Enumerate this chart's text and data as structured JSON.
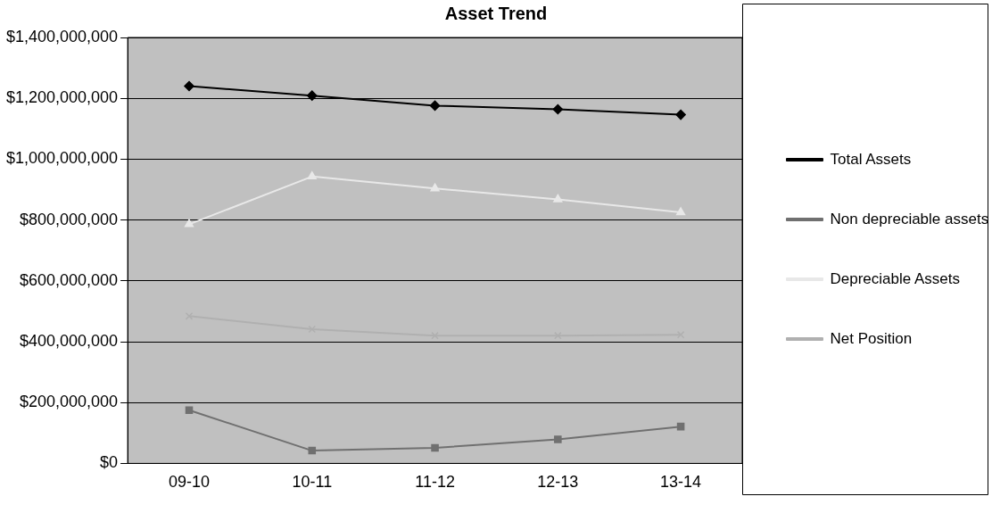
{
  "chart_data": {
    "type": "line",
    "title": "Asset Trend",
    "categories": [
      "09-10",
      "10-11",
      "11-12",
      "12-13",
      "13-14"
    ],
    "series": [
      {
        "name": "Total Assets",
        "color": "#000000",
        "marker": "diamond",
        "values": [
          1240000000,
          1209000000,
          1176000000,
          1164000000,
          1146000000
        ]
      },
      {
        "name": "Non depreciable assets",
        "color": "#707070",
        "marker": "square",
        "values": [
          175000000,
          42000000,
          51000000,
          79000000,
          121000000
        ]
      },
      {
        "name": "Depreciable Assets",
        "color": "#e8e8e8",
        "marker": "triangle",
        "values": [
          786000000,
          943000000,
          904000000,
          868000000,
          825000000
        ]
      },
      {
        "name": "Net Position",
        "color": "#b0b0b0",
        "marker": "cross",
        "values": [
          484000000,
          441000000,
          420000000,
          420000000,
          423000000
        ]
      }
    ],
    "ylim": [
      0,
      1400000000
    ],
    "yticks": [
      {
        "value": 0,
        "label": "$0"
      },
      {
        "value": 200000000,
        "label": "$200,000,000"
      },
      {
        "value": 400000000,
        "label": "$400,000,000"
      },
      {
        "value": 600000000,
        "label": "$600,000,000"
      },
      {
        "value": 800000000,
        "label": "$800,000,000"
      },
      {
        "value": 1000000000,
        "label": "$1,000,000,000"
      },
      {
        "value": 1200000000,
        "label": "$1,200,000,000"
      },
      {
        "value": 1400000000,
        "label": "$1,400,000,000"
      }
    ],
    "grid": "y",
    "legend": "right",
    "line_style": "solid"
  }
}
